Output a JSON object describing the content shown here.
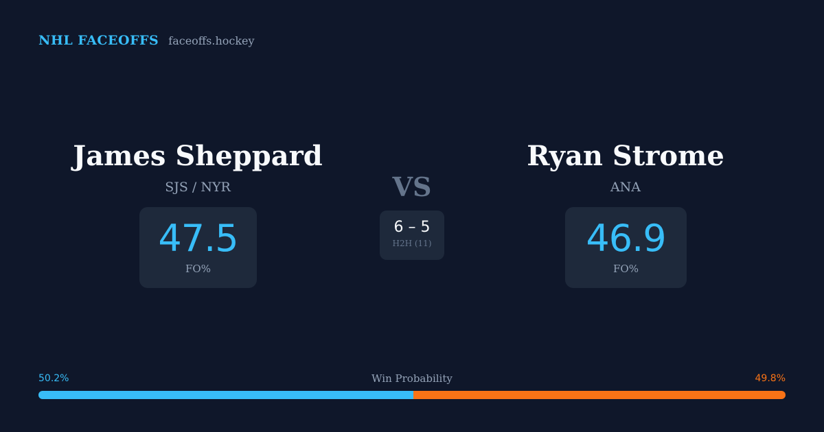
{
  "brand": {
    "name": "NHL FACEOFFS",
    "url": "faceoffs.hockey"
  },
  "players": [
    {
      "name": "James Sheppard",
      "team": "SJS / NYR",
      "fo_pct": "47.5",
      "fo_label": "FO%"
    },
    {
      "name": "Ryan Strome",
      "team": "ANA",
      "fo_pct": "46.9",
      "fo_label": "FO%"
    }
  ],
  "versus": {
    "label": "VS",
    "score": "6 – 5",
    "h2h_label": "H2H (11)"
  },
  "win_probability": {
    "title": "Win Probability",
    "left_label": "50.2%",
    "right_label": "49.8%",
    "left_value": 50.2,
    "right_value": 49.8,
    "colors": {
      "left": "#38bdf8",
      "right": "#f97316"
    }
  }
}
